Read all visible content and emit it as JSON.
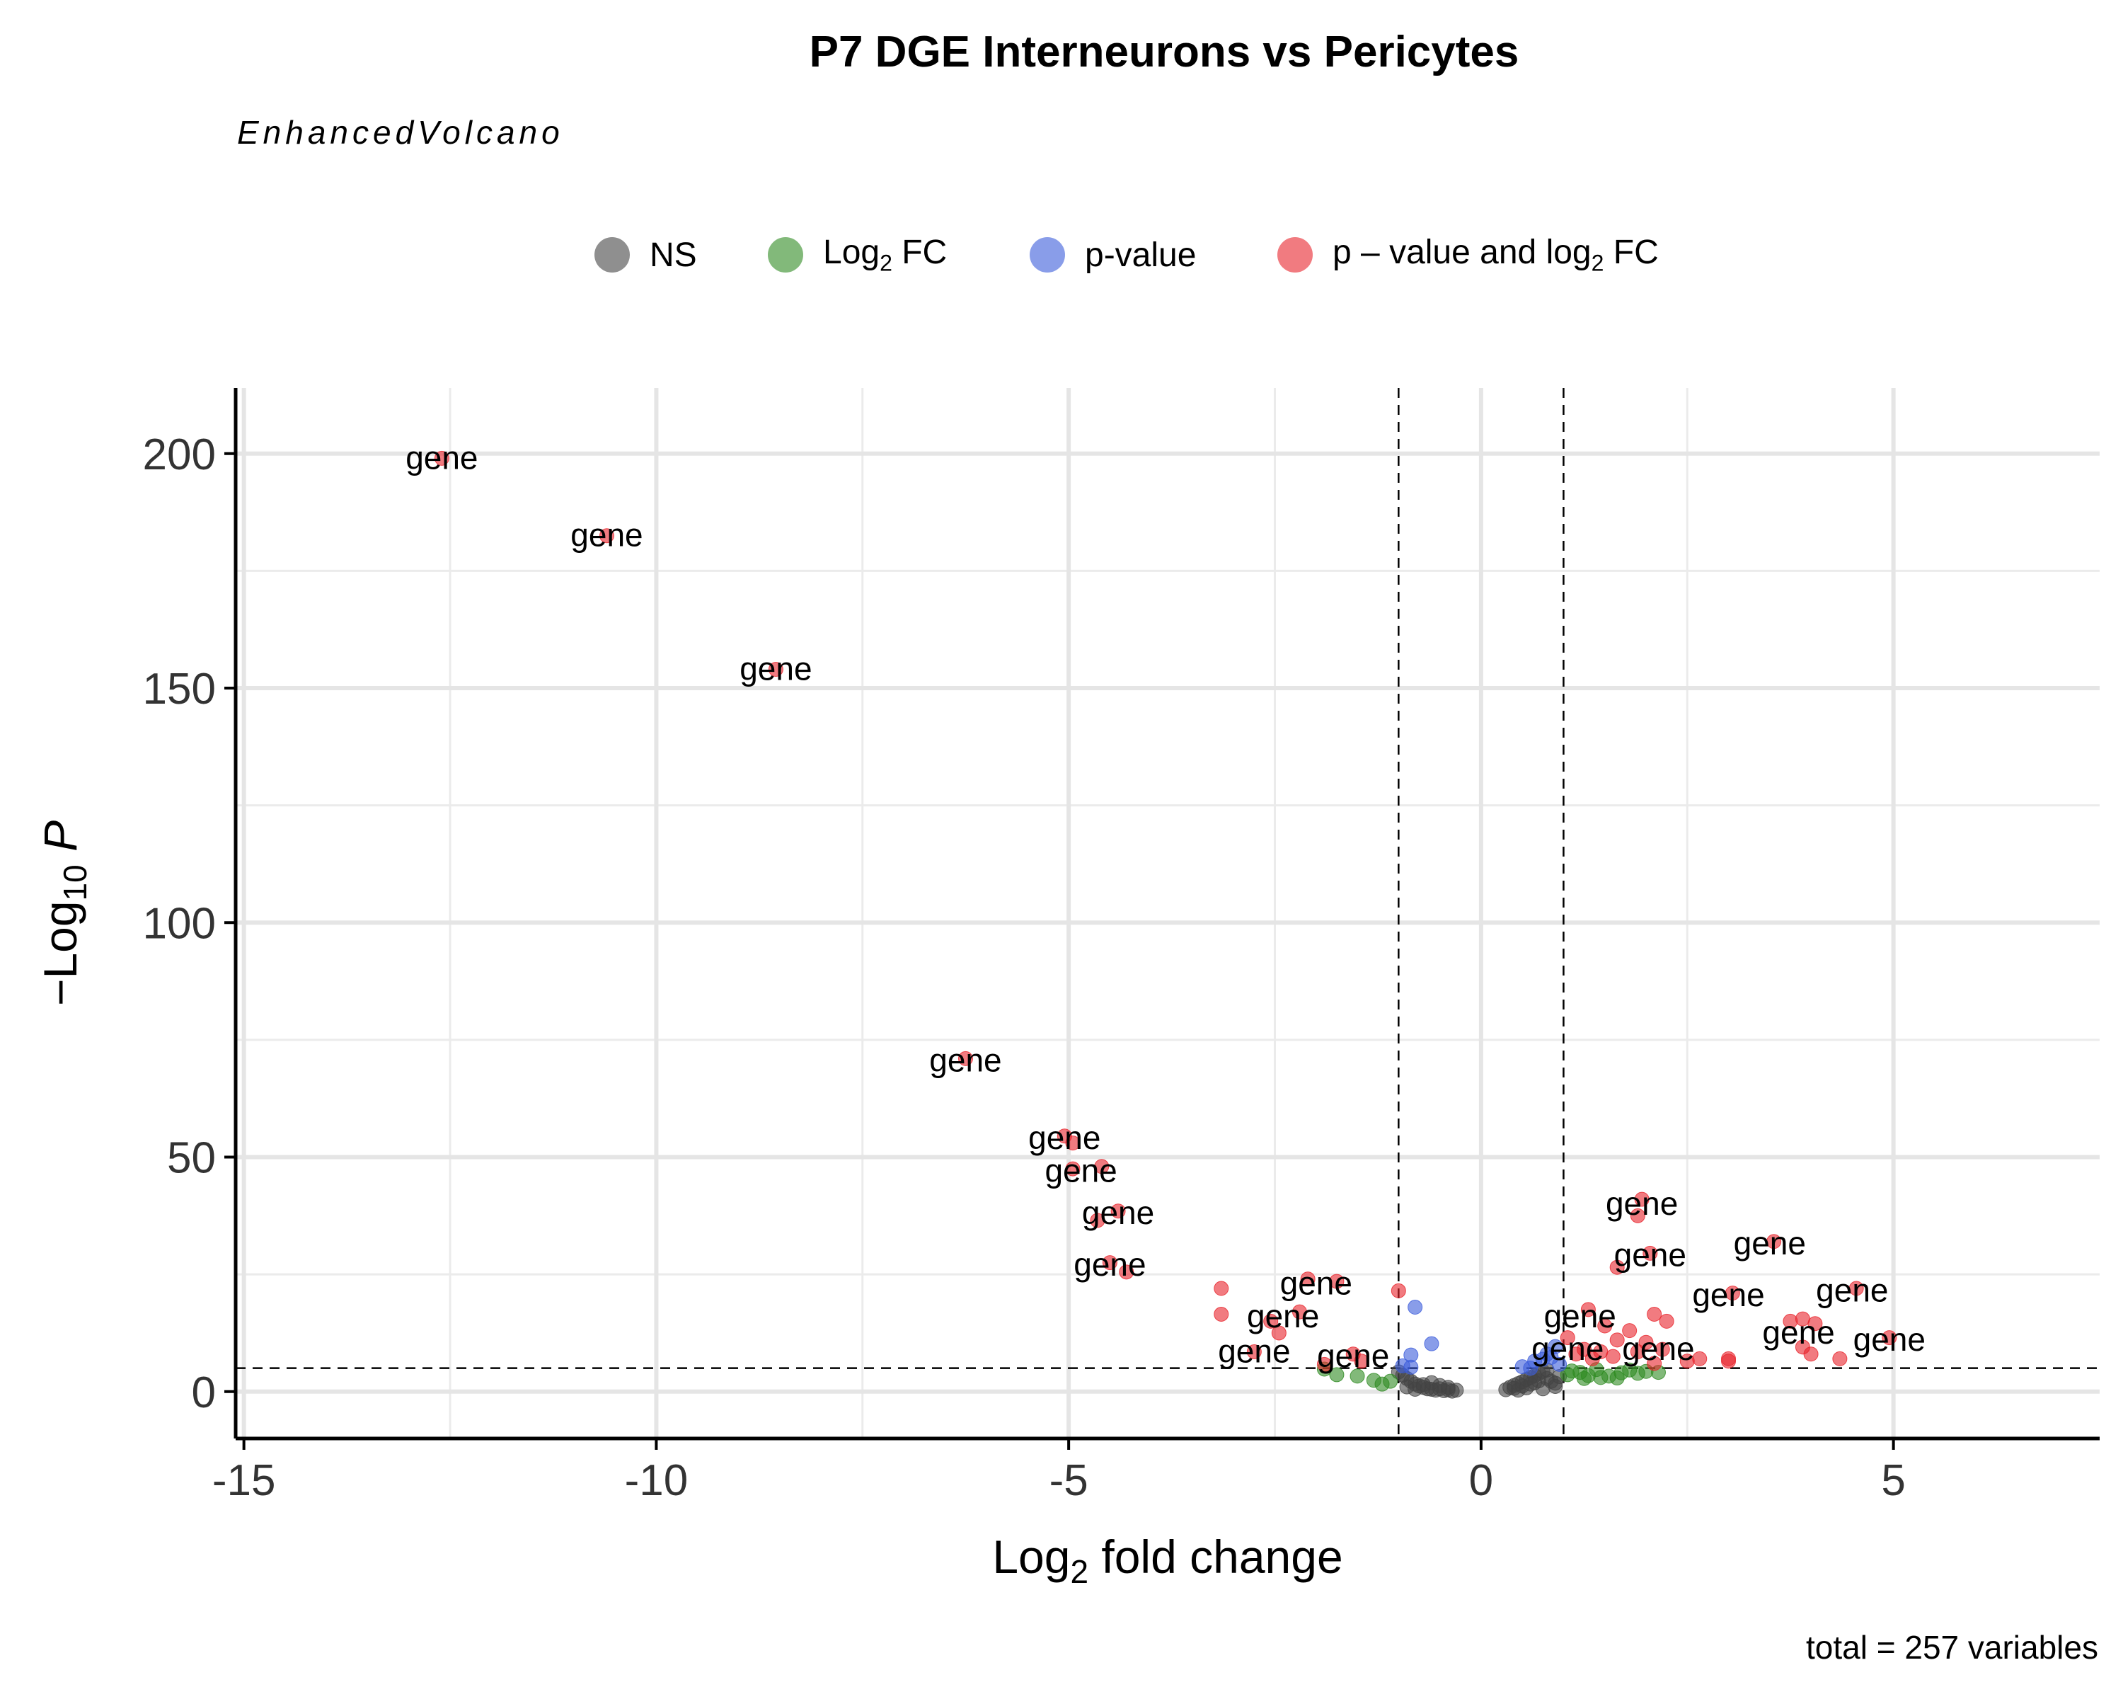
{
  "chart_data": {
    "type": "scatter",
    "title": "P7 DGE Interneurons vs Pericytes",
    "subtitle": "EnhancedVolcano",
    "caption": "total = 257 variables",
    "xlabel": "Log2 fold change",
    "ylabel": "−Log10 P",
    "xlim": [
      -15.1,
      7.5
    ],
    "ylim": [
      -10,
      214
    ],
    "x_ticks": [
      -15,
      -10,
      -5,
      0,
      5
    ],
    "x_tick_labels": [
      "-15",
      "-10",
      "-5",
      "0",
      "5"
    ],
    "y_ticks": [
      0,
      50,
      100,
      150,
      200
    ],
    "y_tick_labels": [
      "0",
      "50",
      "100",
      "150",
      "200"
    ],
    "fc_cutoff": 1,
    "p_cutoff_neglog10": 5,
    "grid": true,
    "legend_position": "top",
    "legend": [
      {
        "key": "NS",
        "color": "#444444"
      },
      {
        "key": "Log2 FC",
        "color": "#2e8b22"
      },
      {
        "key": "p-value",
        "color": "#3b5bdb"
      },
      {
        "key": "p – value and log2 FC",
        "color": "#e8232b"
      }
    ],
    "series": [
      {
        "name": "NS",
        "color": "#444444",
        "points": [
          [
            -1.0,
            4.2
          ],
          [
            -0.95,
            3.5
          ],
          [
            -0.9,
            2.8
          ],
          [
            -0.85,
            2.2
          ],
          [
            -0.8,
            1.6
          ],
          [
            -0.75,
            1.2
          ],
          [
            -0.7,
            0.9
          ],
          [
            -0.65,
            0.6
          ],
          [
            -0.6,
            0.5
          ],
          [
            -0.55,
            0.3
          ],
          [
            -0.5,
            0.6
          ],
          [
            -0.45,
            0.2
          ],
          [
            -0.4,
            0.4
          ],
          [
            -0.35,
            0.1
          ],
          [
            -0.3,
            0.3
          ],
          [
            -0.9,
            1.0
          ],
          [
            -0.8,
            0.5
          ],
          [
            -0.7,
            1.5
          ],
          [
            -0.6,
            1.9
          ],
          [
            -0.5,
            1.3
          ],
          [
            -0.4,
            0.9
          ],
          [
            0.3,
            0.4
          ],
          [
            0.35,
            0.9
          ],
          [
            0.4,
            1.3
          ],
          [
            0.45,
            1.7
          ],
          [
            0.5,
            2.1
          ],
          [
            0.55,
            2.6
          ],
          [
            0.6,
            3.0
          ],
          [
            0.65,
            3.4
          ],
          [
            0.7,
            3.9
          ],
          [
            0.75,
            4.3
          ],
          [
            0.8,
            4.6
          ],
          [
            0.85,
            2.2
          ],
          [
            0.9,
            1.8
          ],
          [
            0.95,
            3.2
          ],
          [
            0.4,
            0.7
          ],
          [
            0.5,
            1.2
          ],
          [
            0.6,
            1.6
          ],
          [
            0.7,
            2.3
          ],
          [
            0.8,
            2.8
          ],
          [
            0.9,
            1.1
          ],
          [
            0.45,
            0.3
          ],
          [
            0.55,
            0.8
          ],
          [
            0.65,
            1.9
          ],
          [
            0.75,
            0.6
          ]
        ]
      },
      {
        "name": "Log2 FC",
        "color": "#2e8b22",
        "points": [
          [
            -1.9,
            4.8
          ],
          [
            -1.75,
            3.6
          ],
          [
            -1.5,
            3.3
          ],
          [
            -1.3,
            2.4
          ],
          [
            -1.2,
            1.6
          ],
          [
            -1.1,
            2.2
          ],
          [
            1.05,
            3.6
          ],
          [
            1.1,
            4.4
          ],
          [
            1.2,
            4.1
          ],
          [
            1.3,
            3.4
          ],
          [
            1.4,
            4.7
          ],
          [
            1.55,
            3.3
          ],
          [
            1.7,
            4.0
          ],
          [
            1.8,
            4.6
          ],
          [
            1.9,
            3.9
          ],
          [
            2.0,
            4.3
          ],
          [
            2.15,
            4.1
          ],
          [
            1.25,
            2.8
          ],
          [
            1.45,
            3.0
          ],
          [
            1.65,
            2.9
          ]
        ]
      },
      {
        "name": "p-value",
        "color": "#3b5bdb",
        "points": [
          [
            -0.95,
            5.5
          ],
          [
            -0.85,
            7.8
          ],
          [
            -0.8,
            18.0
          ],
          [
            -0.6,
            10.2
          ],
          [
            -0.85,
            5.2
          ],
          [
            0.5,
            5.3
          ],
          [
            0.65,
            6.5
          ],
          [
            0.8,
            8.0
          ],
          [
            0.9,
            9.6
          ],
          [
            0.95,
            5.8
          ],
          [
            0.6,
            5.0
          ],
          [
            0.75,
            6.9
          ],
          [
            0.85,
            7.3
          ]
        ]
      },
      {
        "name": "p – value and log2 FC",
        "color": "#e8232b",
        "points": [
          [
            -12.6,
            199.0
          ],
          [
            -10.6,
            182.5
          ],
          [
            -8.55,
            154.0
          ],
          [
            -6.25,
            71.0
          ],
          [
            -5.05,
            54.5
          ],
          [
            -4.95,
            53.0
          ],
          [
            -4.95,
            47.5
          ],
          [
            -4.6,
            48.0
          ],
          [
            -4.4,
            38.5
          ],
          [
            -4.65,
            36.5
          ],
          [
            -4.5,
            27.5
          ],
          [
            -4.3,
            25.5
          ],
          [
            -3.15,
            22.0
          ],
          [
            -3.15,
            16.5
          ],
          [
            -2.1,
            24.0
          ],
          [
            -1.75,
            23.5
          ],
          [
            -2.2,
            17.0
          ],
          [
            -2.55,
            15.0
          ],
          [
            -2.45,
            12.5
          ],
          [
            -2.75,
            8.5
          ],
          [
            -1.9,
            5.8
          ],
          [
            -1.55,
            8.0
          ],
          [
            -1.45,
            6.5
          ],
          [
            -1.0,
            21.5
          ],
          [
            1.95,
            41.0
          ],
          [
            1.9,
            37.5
          ],
          [
            2.05,
            29.5
          ],
          [
            1.65,
            26.5
          ],
          [
            3.55,
            32.0
          ],
          [
            3.05,
            21.0
          ],
          [
            3.0,
            7.0
          ],
          [
            4.55,
            22.0
          ],
          [
            4.95,
            11.5
          ],
          [
            4.35,
            7.0
          ],
          [
            3.9,
            15.5
          ],
          [
            4.05,
            14.5
          ],
          [
            4.0,
            8.0
          ],
          [
            3.9,
            9.5
          ],
          [
            3.75,
            15.0
          ],
          [
            2.1,
            16.5
          ],
          [
            2.25,
            15.0
          ],
          [
            1.3,
            17.5
          ],
          [
            1.5,
            14.0
          ],
          [
            1.8,
            13.0
          ],
          [
            1.25,
            9.0
          ],
          [
            1.45,
            8.5
          ],
          [
            1.65,
            11.0
          ],
          [
            2.0,
            10.5
          ],
          [
            2.5,
            6.5
          ],
          [
            2.65,
            7.0
          ],
          [
            2.2,
            9.0
          ],
          [
            1.35,
            7.0
          ],
          [
            1.05,
            11.5
          ],
          [
            1.15,
            8.0
          ],
          [
            2.1,
            6.0
          ],
          [
            1.9,
            8.5
          ],
          [
            1.6,
            7.5
          ],
          [
            3.0,
            6.5
          ]
        ]
      }
    ],
    "labels": [
      {
        "text": "gene",
        "x": -12.6,
        "y": 199.0
      },
      {
        "text": "gene",
        "x": -10.6,
        "y": 182.5
      },
      {
        "text": "gene",
        "x": -8.55,
        "y": 154.0
      },
      {
        "text": "gene",
        "x": -6.25,
        "y": 70.5
      },
      {
        "text": "gene",
        "x": -5.05,
        "y": 54.0
      },
      {
        "text": "gene",
        "x": -4.85,
        "y": 47.0
      },
      {
        "text": "gene",
        "x": -4.4,
        "y": 38.0
      },
      {
        "text": "gene",
        "x": -4.5,
        "y": 27.0
      },
      {
        "text": "gene",
        "x": -2.0,
        "y": 23.0
      },
      {
        "text": "gene",
        "x": -2.4,
        "y": 16.0
      },
      {
        "text": "gene",
        "x": -2.75,
        "y": 8.5
      },
      {
        "text": "gene",
        "x": -1.55,
        "y": 7.5
      },
      {
        "text": "gene",
        "x": 1.95,
        "y": 40.0
      },
      {
        "text": "gene",
        "x": 2.05,
        "y": 29.0
      },
      {
        "text": "gene",
        "x": 3.5,
        "y": 31.5
      },
      {
        "text": "gene",
        "x": 3.0,
        "y": 20.5
      },
      {
        "text": "gene",
        "x": 4.5,
        "y": 21.5
      },
      {
        "text": "gene",
        "x": 1.2,
        "y": 16.0
      },
      {
        "text": "gene",
        "x": 3.85,
        "y": 12.5
      },
      {
        "text": "gene",
        "x": 4.95,
        "y": 11.0
      },
      {
        "text": "gene",
        "x": 1.05,
        "y": 9.0
      },
      {
        "text": "gene",
        "x": 2.15,
        "y": 9.0
      }
    ]
  }
}
